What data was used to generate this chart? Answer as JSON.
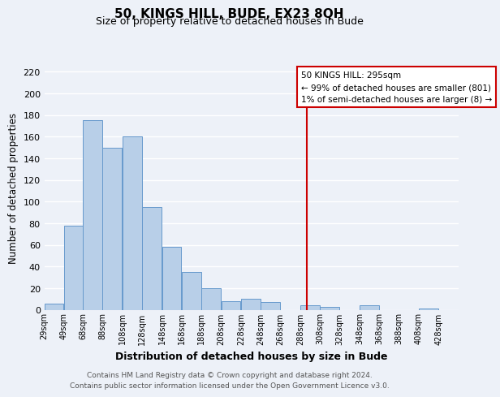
{
  "title": "50, KINGS HILL, BUDE, EX23 8QH",
  "subtitle": "Size of property relative to detached houses in Bude",
  "xlabel": "Distribution of detached houses by size in Bude",
  "ylabel": "Number of detached properties",
  "bar_edges": [
    29,
    49,
    68,
    88,
    108,
    128,
    148,
    168,
    188,
    208,
    228,
    248,
    268,
    288,
    308,
    328,
    348,
    368,
    388,
    408,
    428
  ],
  "bar_heights": [
    6,
    78,
    175,
    150,
    160,
    95,
    58,
    35,
    20,
    8,
    10,
    7,
    0,
    4,
    3,
    0,
    4,
    0,
    0,
    1
  ],
  "bar_color": "#b8cfe8",
  "bar_edge_color": "#6699cc",
  "vline_x": 295,
  "vline_color": "#cc0000",
  "legend_title": "50 KINGS HILL: 295sqm",
  "legend_line1": "← 99% of detached houses are smaller (801)",
  "legend_line2": "1% of semi-detached houses are larger (8) →",
  "legend_box_edgecolor": "#cc0000",
  "ylim": [
    0,
    225
  ],
  "yticks": [
    0,
    20,
    40,
    60,
    80,
    100,
    120,
    140,
    160,
    180,
    200,
    220
  ],
  "xtick_labels": [
    "29sqm",
    "49sqm",
    "68sqm",
    "88sqm",
    "108sqm",
    "128sqm",
    "148sqm",
    "168sqm",
    "188sqm",
    "208sqm",
    "228sqm",
    "248sqm",
    "268sqm",
    "288sqm",
    "308sqm",
    "328sqm",
    "348sqm",
    "368sqm",
    "388sqm",
    "408sqm",
    "428sqm"
  ],
  "background_color": "#edf1f8",
  "axes_background": "#edf1f8",
  "grid_color": "#ffffff",
  "footer_line1": "Contains HM Land Registry data © Crown copyright and database right 2024.",
  "footer_line2": "Contains public sector information licensed under the Open Government Licence v3.0."
}
